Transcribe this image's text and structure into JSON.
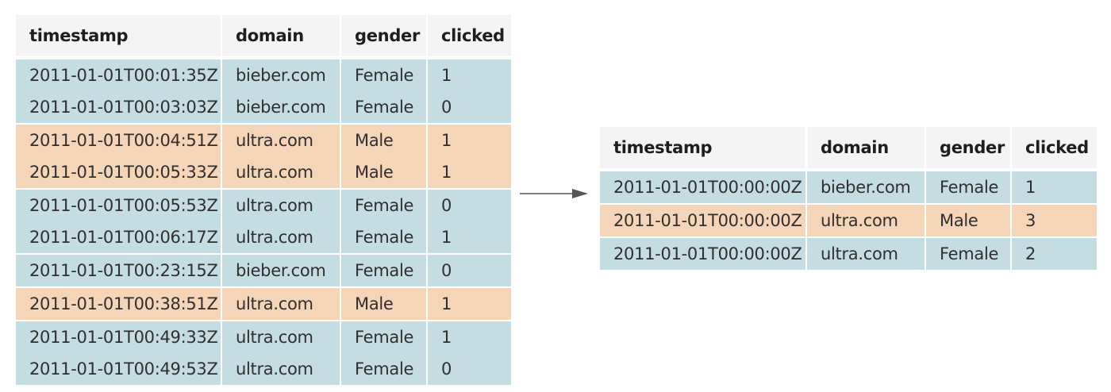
{
  "colors": {
    "header_bg": "#f4f4f4",
    "blue_row": "#c3dde3",
    "orange_row": "#f5d5b8",
    "arrow": "#555555"
  },
  "input_table": {
    "columns": [
      "timestamp",
      "domain",
      "gender",
      "clicked"
    ],
    "rows": [
      {
        "color": "blue",
        "group_start": true,
        "cells": [
          "2011-01-01T00:01:35Z",
          "bieber.com",
          "Female",
          "1"
        ]
      },
      {
        "color": "blue",
        "group_start": false,
        "cells": [
          "2011-01-01T00:03:03Z",
          "bieber.com",
          "Female",
          "0"
        ]
      },
      {
        "color": "orange",
        "group_start": true,
        "cells": [
          "2011-01-01T00:04:51Z",
          "ultra.com",
          "Male",
          "1"
        ]
      },
      {
        "color": "orange",
        "group_start": false,
        "cells": [
          "2011-01-01T00:05:33Z",
          "ultra.com",
          "Male",
          "1"
        ]
      },
      {
        "color": "blue",
        "group_start": true,
        "cells": [
          "2011-01-01T00:05:53Z",
          "ultra.com",
          "Female",
          "0"
        ]
      },
      {
        "color": "blue",
        "group_start": false,
        "cells": [
          "2011-01-01T00:06:17Z",
          "ultra.com",
          "Female",
          "1"
        ]
      },
      {
        "color": "blue",
        "group_start": true,
        "cells": [
          "2011-01-01T00:23:15Z",
          "bieber.com",
          "Female",
          "0"
        ]
      },
      {
        "color": "orange",
        "group_start": true,
        "cells": [
          "2011-01-01T00:38:51Z",
          "ultra.com",
          "Male",
          "1"
        ]
      },
      {
        "color": "blue",
        "group_start": true,
        "cells": [
          "2011-01-01T00:49:33Z",
          "ultra.com",
          "Female",
          "1"
        ]
      },
      {
        "color": "blue",
        "group_start": false,
        "cells": [
          "2011-01-01T00:49:53Z",
          "ultra.com",
          "Female",
          "0"
        ]
      }
    ]
  },
  "output_table": {
    "columns": [
      "timestamp",
      "domain",
      "gender",
      "clicked"
    ],
    "rows": [
      {
        "color": "blue",
        "group_start": true,
        "cells": [
          "2011-01-01T00:00:00Z",
          "bieber.com",
          "Female",
          "1"
        ]
      },
      {
        "color": "orange",
        "group_start": true,
        "cells": [
          "2011-01-01T00:00:00Z",
          "ultra.com",
          "Male",
          "3"
        ]
      },
      {
        "color": "blue",
        "group_start": true,
        "cells": [
          "2011-01-01T00:00:00Z",
          "ultra.com",
          "Female",
          "2"
        ]
      }
    ]
  }
}
